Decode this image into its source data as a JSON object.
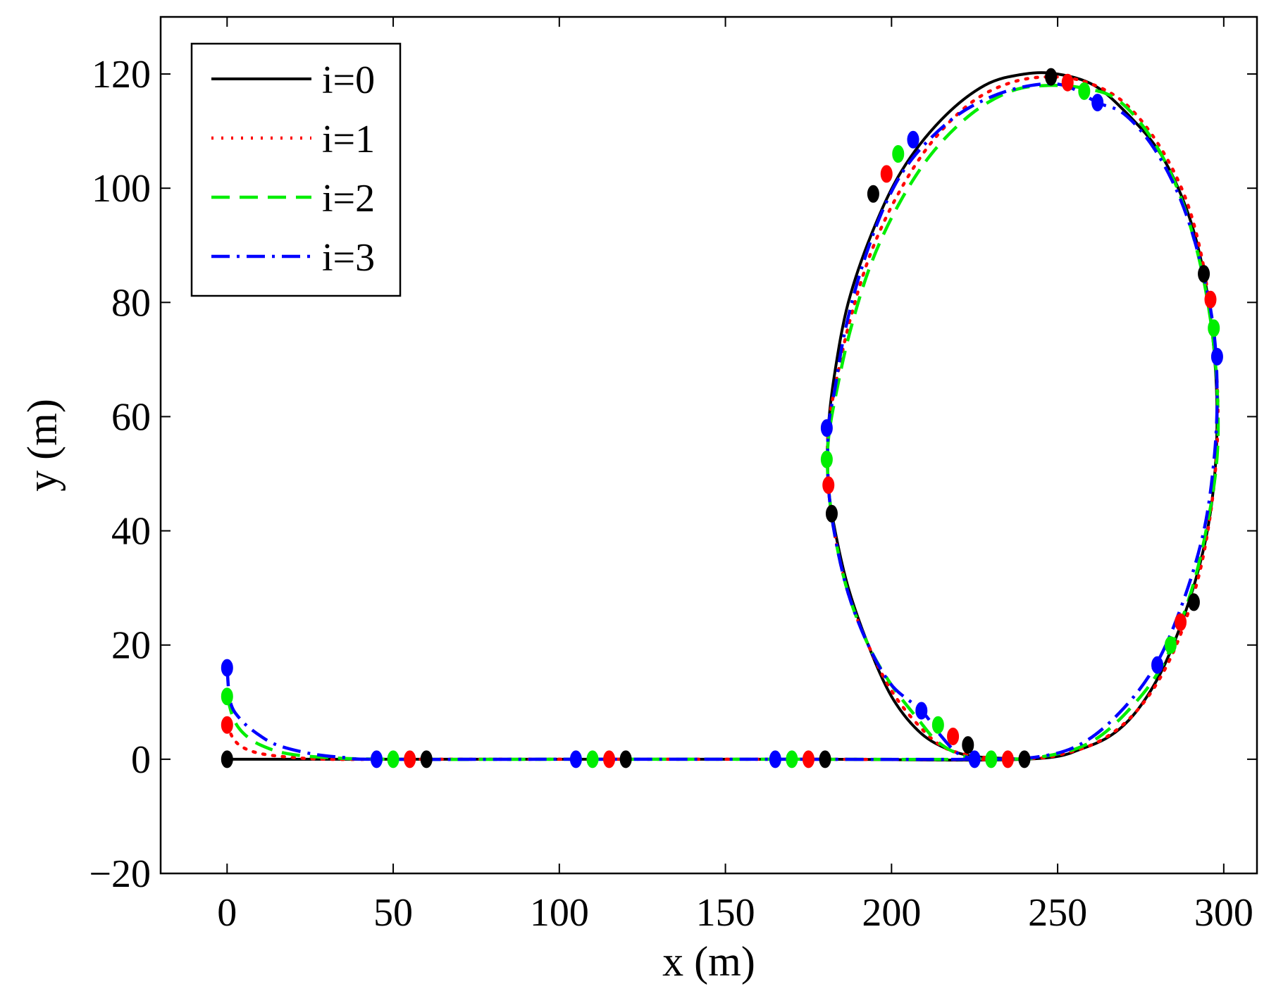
{
  "chart_data": {
    "type": "line",
    "title": "",
    "xlabel": "x (m)",
    "ylabel": "y (m)",
    "xlim": [
      -20,
      310
    ],
    "ylim": [
      -20,
      130
    ],
    "xticks": [
      0,
      50,
      100,
      150,
      200,
      250,
      300
    ],
    "yticks": [
      -20,
      0,
      20,
      40,
      60,
      80,
      100,
      120
    ],
    "xtick_labels": [
      "0",
      "50",
      "100",
      "150",
      "200",
      "250",
      "300"
    ],
    "ytick_labels": [
      "−20",
      "0",
      "20",
      "40",
      "60",
      "80",
      "100",
      "120"
    ],
    "grid": false,
    "legend_position": "top-left",
    "colors": {
      "i=0": "#000000",
      "i=1": "#ff0000",
      "i=2": "#00ee00",
      "i=3": "#0000ff"
    },
    "series": [
      {
        "name": "i=0",
        "color": "#000000",
        "line_style": "solid",
        "points": [
          [
            0,
            0
          ],
          [
            60,
            0
          ],
          [
            120,
            0
          ],
          [
            180,
            0
          ],
          [
            240,
            0
          ],
          [
            258,
            2
          ],
          [
            270,
            6
          ],
          [
            280,
            14
          ],
          [
            288,
            25
          ],
          [
            294,
            37
          ],
          [
            297,
            48
          ],
          [
            298,
            60
          ],
          [
            297,
            72
          ],
          [
            294,
            85
          ],
          [
            289,
            96
          ],
          [
            281,
            106
          ],
          [
            271,
            113
          ],
          [
            261,
            118
          ],
          [
            250,
            120
          ],
          [
            240,
            120
          ],
          [
            228,
            118
          ],
          [
            215,
            112
          ],
          [
            203,
            103
          ],
          [
            194,
            92
          ],
          [
            187,
            80
          ],
          [
            183,
            68
          ],
          [
            181,
            58
          ],
          [
            181,
            48
          ],
          [
            183,
            40
          ],
          [
            187,
            30
          ],
          [
            193,
            20
          ],
          [
            200,
            11
          ],
          [
            208,
            5
          ],
          [
            216,
            2
          ],
          [
            225,
            0.5
          ],
          [
            240,
            0
          ]
        ],
        "markers": [
          [
            0,
            0
          ],
          [
            60,
            0
          ],
          [
            120,
            0
          ],
          [
            180,
            0
          ],
          [
            240,
            0
          ],
          [
            223,
            2.5
          ],
          [
            182,
            43
          ],
          [
            194.5,
            99
          ],
          [
            248,
            119.5
          ],
          [
            294,
            85
          ],
          [
            291,
            27.5
          ]
        ]
      },
      {
        "name": "i=1",
        "color": "#ff0000",
        "line_style": "dotted",
        "points": [
          [
            0,
            6
          ],
          [
            2,
            3.5
          ],
          [
            5,
            2
          ],
          [
            10,
            1
          ],
          [
            18,
            0.4
          ],
          [
            30,
            0
          ],
          [
            55,
            0
          ],
          [
            115,
            0
          ],
          [
            175,
            0
          ],
          [
            235,
            0
          ],
          [
            252,
            1
          ],
          [
            265,
            4
          ],
          [
            276,
            10
          ],
          [
            285,
            19
          ],
          [
            292,
            31
          ],
          [
            296,
            43
          ],
          [
            298,
            55
          ],
          [
            298,
            66
          ],
          [
            296,
            78
          ],
          [
            293,
            89
          ],
          [
            288,
            99
          ],
          [
            280,
            108
          ],
          [
            270,
            115
          ],
          [
            259,
            118.5
          ],
          [
            248,
            119.5
          ],
          [
            236,
            118.5
          ],
          [
            224,
            115
          ],
          [
            212,
            108
          ],
          [
            202,
            99
          ],
          [
            194,
            89
          ],
          [
            188,
            78
          ],
          [
            184,
            68
          ],
          [
            181,
            58
          ],
          [
            181,
            48
          ],
          [
            183,
            39
          ],
          [
            187,
            29
          ],
          [
            193,
            20
          ],
          [
            200,
            12
          ],
          [
            208,
            6
          ],
          [
            216,
            2
          ],
          [
            226,
            0.5
          ],
          [
            235,
            0
          ]
        ],
        "markers": [
          [
            0,
            6
          ],
          [
            55,
            0
          ],
          [
            115,
            0
          ],
          [
            175,
            0
          ],
          [
            235,
            0
          ],
          [
            218.5,
            4
          ],
          [
            181,
            48
          ],
          [
            198.5,
            102.5
          ],
          [
            253,
            118.5
          ],
          [
            296,
            80.5
          ],
          [
            287,
            24
          ]
        ]
      },
      {
        "name": "i=2",
        "color": "#00ee00",
        "line_style": "dashed",
        "points": [
          [
            0,
            11
          ],
          [
            2,
            7
          ],
          [
            5,
            4.5
          ],
          [
            10,
            2.5
          ],
          [
            18,
            1
          ],
          [
            30,
            0.3
          ],
          [
            50,
            0
          ],
          [
            110,
            0
          ],
          [
            170,
            0
          ],
          [
            230,
            0
          ],
          [
            246,
            0.5
          ],
          [
            260,
            3
          ],
          [
            272,
            9
          ],
          [
            282,
            17
          ],
          [
            290,
            29
          ],
          [
            295,
            41
          ],
          [
            298,
            53
          ],
          [
            298,
            65
          ],
          [
            296,
            77
          ],
          [
            292,
            89
          ],
          [
            286,
            100
          ],
          [
            278,
            109
          ],
          [
            268,
            115.5
          ],
          [
            258,
            117.5
          ],
          [
            247,
            118
          ],
          [
            236,
            117
          ],
          [
            224,
            113
          ],
          [
            212,
            106
          ],
          [
            202,
            97
          ],
          [
            194,
            87
          ],
          [
            188,
            76
          ],
          [
            184,
            66
          ],
          [
            181,
            56
          ],
          [
            181,
            48
          ],
          [
            183,
            39
          ],
          [
            187,
            29
          ],
          [
            193,
            20
          ],
          [
            200,
            13
          ],
          [
            208,
            7
          ],
          [
            214,
            3
          ],
          [
            222,
            0.5
          ],
          [
            230,
            0
          ]
        ],
        "markers": [
          [
            0,
            11
          ],
          [
            50,
            0
          ],
          [
            110,
            0
          ],
          [
            170,
            0
          ],
          [
            230,
            0
          ],
          [
            214,
            6
          ],
          [
            180.5,
            52.5
          ],
          [
            202,
            106
          ],
          [
            258,
            117
          ],
          [
            297,
            75.5
          ],
          [
            284,
            20
          ]
        ]
      },
      {
        "name": "i=3",
        "color": "#0000ff",
        "line_style": "dashdot",
        "points": [
          [
            0,
            16
          ],
          [
            1,
            10
          ],
          [
            4,
            7
          ],
          [
            9,
            4.5
          ],
          [
            15,
            2.5
          ],
          [
            25,
            1
          ],
          [
            35,
            0.3
          ],
          [
            45,
            0
          ],
          [
            105,
            0
          ],
          [
            165,
            0
          ],
          [
            225,
            0
          ],
          [
            245,
            0.5
          ],
          [
            258,
            3
          ],
          [
            270,
            9
          ],
          [
            280,
            17
          ],
          [
            288,
            28
          ],
          [
            294,
            40
          ],
          [
            297,
            52
          ],
          [
            298,
            63
          ],
          [
            297,
            75
          ],
          [
            293,
            87
          ],
          [
            287,
            98
          ],
          [
            279,
            107
          ],
          [
            270,
            113
          ],
          [
            262,
            115
          ],
          [
            252,
            118
          ],
          [
            242,
            118
          ],
          [
            230,
            116
          ],
          [
            218,
            112
          ],
          [
            206,
            105
          ],
          [
            198,
            97
          ],
          [
            191,
            86
          ],
          [
            186,
            75
          ],
          [
            183,
            65
          ],
          [
            181,
            58
          ],
          [
            181,
            48
          ],
          [
            183,
            39
          ],
          [
            187,
            29
          ],
          [
            193,
            20
          ],
          [
            200,
            13
          ],
          [
            209,
            8.5
          ],
          [
            215,
            4
          ],
          [
            220,
            1
          ],
          [
            225,
            0
          ]
        ],
        "markers": [
          [
            0,
            16
          ],
          [
            45,
            0
          ],
          [
            105,
            0
          ],
          [
            165,
            0
          ],
          [
            225,
            0
          ],
          [
            209,
            8.5
          ],
          [
            180.5,
            58
          ],
          [
            206.5,
            108.5
          ],
          [
            262,
            115
          ],
          [
            298,
            70.5
          ],
          [
            280,
            16.5
          ]
        ]
      }
    ]
  }
}
